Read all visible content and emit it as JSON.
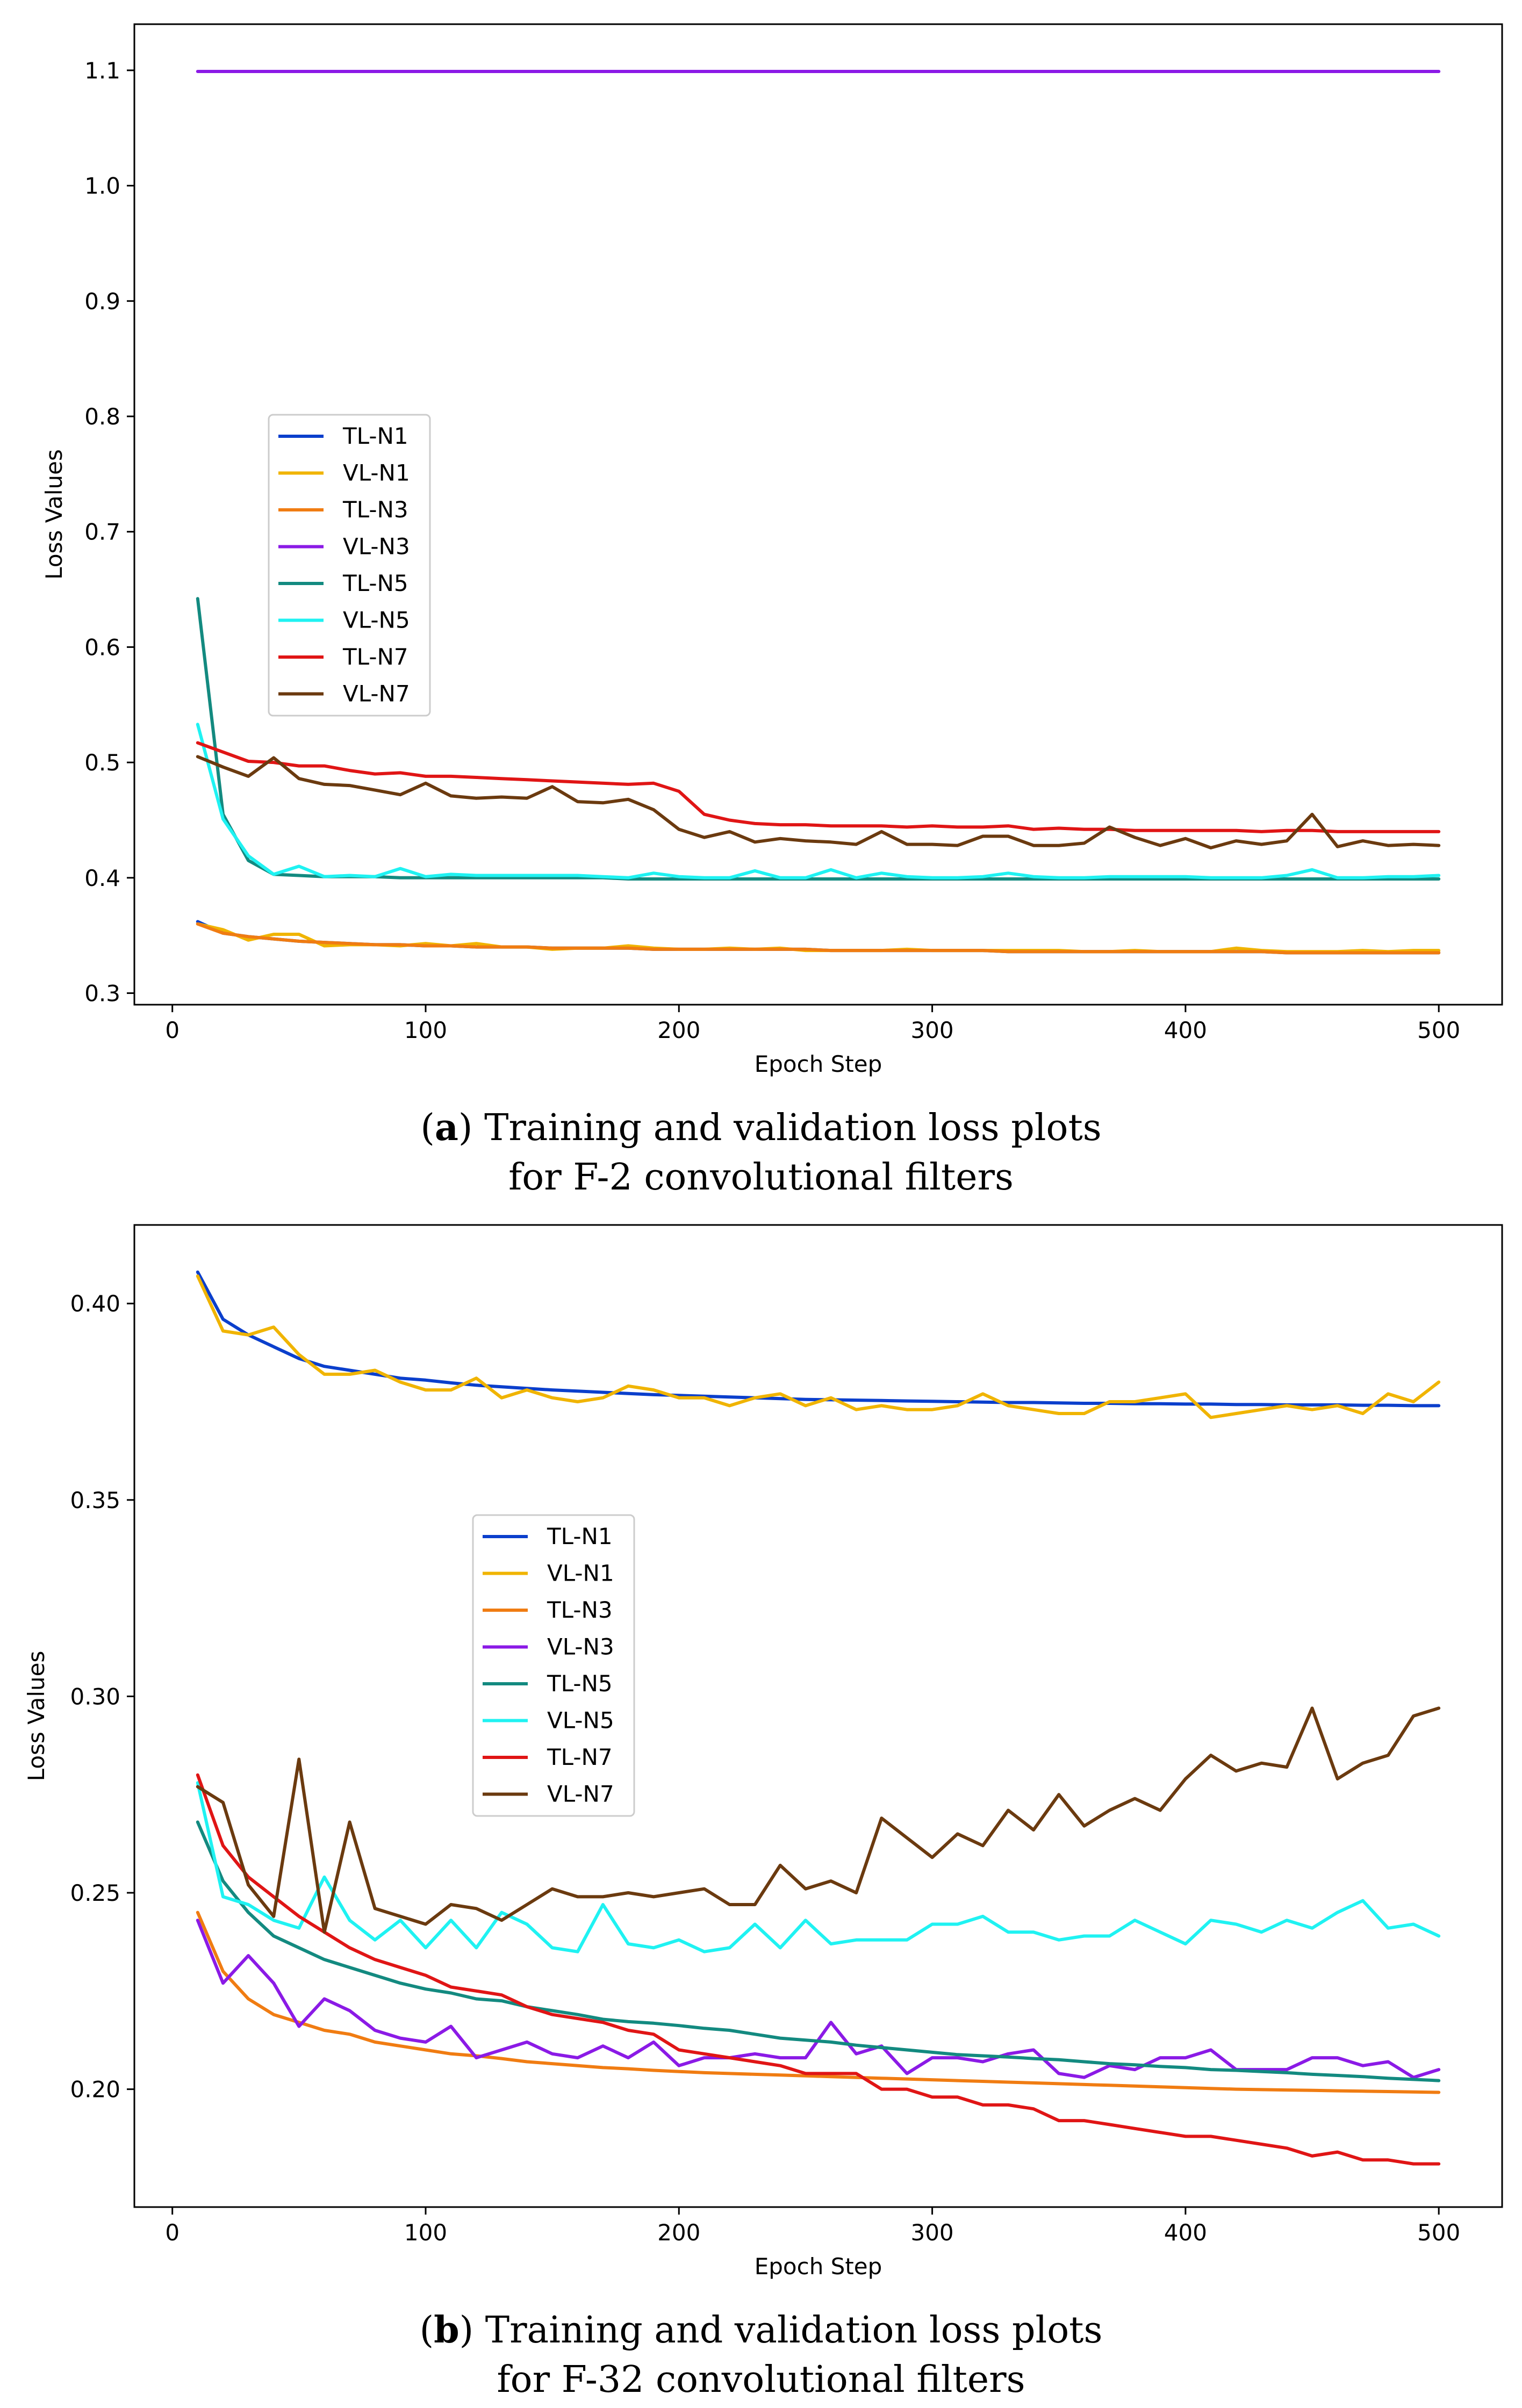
{
  "chart_data": [
    {
      "type": "line",
      "panel_id": "a",
      "caption_prefix": "(",
      "caption_letter": "a",
      "caption_suffix": ") Training and validation loss plots",
      "caption_line2": "for F-2 convolutional filters",
      "xlabel": "Epoch Step",
      "ylabel": "Loss Values",
      "xlim": [
        -15,
        525
      ],
      "ylim": [
        0.29,
        1.14
      ],
      "xticks": [
        0,
        100,
        200,
        300,
        400,
        500
      ],
      "yticks": [
        0.3,
        0.4,
        0.5,
        0.6,
        0.7,
        0.8,
        0.9,
        1.0,
        1.1
      ],
      "ytick_labels": [
        "0.3",
        "0.4",
        "0.5",
        "0.6",
        "0.7",
        "0.8",
        "0.9",
        "1.0",
        "1.1"
      ],
      "legend_position": "center-left",
      "x": [
        10,
        20,
        30,
        40,
        50,
        60,
        70,
        80,
        90,
        100,
        110,
        120,
        130,
        140,
        150,
        160,
        170,
        180,
        190,
        200,
        210,
        220,
        230,
        240,
        250,
        260,
        270,
        280,
        290,
        300,
        310,
        320,
        330,
        340,
        350,
        360,
        370,
        380,
        390,
        400,
        410,
        420,
        430,
        440,
        450,
        460,
        470,
        480,
        490,
        500
      ],
      "series": [
        {
          "name": "TL-N1",
          "color": "#0b3fcc",
          "values": [
            0.362,
            0.352,
            0.349,
            0.347,
            0.345,
            0.344,
            0.343,
            0.342,
            0.342,
            0.341,
            0.341,
            0.34,
            0.34,
            0.34,
            0.339,
            0.339,
            0.339,
            0.339,
            0.338,
            0.338,
            0.338,
            0.338,
            0.338,
            0.338,
            0.338,
            0.337,
            0.337,
            0.337,
            0.337,
            0.337,
            0.337,
            0.337,
            0.336,
            0.336,
            0.336,
            0.336,
            0.336,
            0.336,
            0.336,
            0.336,
            0.336,
            0.336,
            0.336,
            0.335,
            0.335,
            0.335,
            0.335,
            0.335,
            0.335,
            0.335
          ]
        },
        {
          "name": "VL-N1",
          "color": "#f0b400",
          "values": [
            0.36,
            0.355,
            0.346,
            0.351,
            0.351,
            0.341,
            0.342,
            0.342,
            0.341,
            0.343,
            0.341,
            0.343,
            0.34,
            0.34,
            0.338,
            0.339,
            0.339,
            0.341,
            0.339,
            0.338,
            0.338,
            0.339,
            0.338,
            0.339,
            0.337,
            0.337,
            0.337,
            0.337,
            0.338,
            0.337,
            0.337,
            0.337,
            0.337,
            0.337,
            0.337,
            0.336,
            0.336,
            0.337,
            0.336,
            0.336,
            0.336,
            0.339,
            0.337,
            0.336,
            0.336,
            0.336,
            0.337,
            0.336,
            0.337,
            0.337
          ]
        },
        {
          "name": "TL-N3",
          "color": "#f07c12",
          "values": [
            0.36,
            0.352,
            0.349,
            0.347,
            0.345,
            0.344,
            0.343,
            0.342,
            0.342,
            0.341,
            0.341,
            0.34,
            0.34,
            0.34,
            0.339,
            0.339,
            0.339,
            0.339,
            0.338,
            0.338,
            0.338,
            0.338,
            0.338,
            0.338,
            0.338,
            0.337,
            0.337,
            0.337,
            0.337,
            0.337,
            0.337,
            0.337,
            0.336,
            0.336,
            0.336,
            0.336,
            0.336,
            0.336,
            0.336,
            0.336,
            0.336,
            0.336,
            0.336,
            0.335,
            0.335,
            0.335,
            0.335,
            0.335,
            0.335,
            0.335
          ]
        },
        {
          "name": "VL-N3",
          "color": "#8b1ae6",
          "values": [
            1.099,
            1.099,
            1.099,
            1.099,
            1.099,
            1.099,
            1.099,
            1.099,
            1.099,
            1.099,
            1.099,
            1.099,
            1.099,
            1.099,
            1.099,
            1.099,
            1.099,
            1.099,
            1.099,
            1.099,
            1.099,
            1.099,
            1.099,
            1.099,
            1.099,
            1.099,
            1.099,
            1.099,
            1.099,
            1.099,
            1.099,
            1.099,
            1.099,
            1.099,
            1.099,
            1.099,
            1.099,
            1.099,
            1.099,
            1.099,
            1.099,
            1.099,
            1.099,
            1.099,
            1.099,
            1.099,
            1.099,
            1.099,
            1.099,
            1.099
          ]
        },
        {
          "name": "TL-N5",
          "color": "#138a80",
          "values": [
            0.642,
            0.455,
            0.415,
            0.403,
            0.402,
            0.401,
            0.401,
            0.401,
            0.4,
            0.4,
            0.4,
            0.4,
            0.4,
            0.4,
            0.4,
            0.4,
            0.4,
            0.399,
            0.399,
            0.399,
            0.399,
            0.399,
            0.399,
            0.399,
            0.399,
            0.399,
            0.399,
            0.399,
            0.399,
            0.399,
            0.399,
            0.399,
            0.399,
            0.399,
            0.399,
            0.399,
            0.399,
            0.399,
            0.399,
            0.399,
            0.399,
            0.399,
            0.399,
            0.399,
            0.399,
            0.399,
            0.399,
            0.399,
            0.399,
            0.399
          ]
        },
        {
          "name": "VL-N5",
          "color": "#1ff2f2",
          "values": [
            0.533,
            0.451,
            0.419,
            0.403,
            0.41,
            0.401,
            0.402,
            0.401,
            0.408,
            0.401,
            0.403,
            0.402,
            0.402,
            0.402,
            0.402,
            0.402,
            0.401,
            0.4,
            0.404,
            0.401,
            0.4,
            0.4,
            0.406,
            0.4,
            0.4,
            0.407,
            0.4,
            0.404,
            0.401,
            0.4,
            0.4,
            0.401,
            0.404,
            0.401,
            0.4,
            0.4,
            0.401,
            0.401,
            0.401,
            0.401,
            0.4,
            0.4,
            0.4,
            0.402,
            0.407,
            0.4,
            0.4,
            0.401,
            0.401,
            0.402
          ]
        },
        {
          "name": "TL-N7",
          "color": "#e01515",
          "values": [
            0.517,
            0.509,
            0.501,
            0.5,
            0.497,
            0.497,
            0.493,
            0.49,
            0.491,
            0.488,
            0.488,
            0.487,
            0.486,
            0.485,
            0.484,
            0.483,
            0.482,
            0.481,
            0.482,
            0.475,
            0.455,
            0.45,
            0.447,
            0.446,
            0.446,
            0.445,
            0.445,
            0.445,
            0.444,
            0.445,
            0.444,
            0.444,
            0.445,
            0.442,
            0.443,
            0.442,
            0.442,
            0.441,
            0.441,
            0.441,
            0.441,
            0.441,
            0.44,
            0.441,
            0.441,
            0.44,
            0.44,
            0.44,
            0.44,
            0.44
          ]
        },
        {
          "name": "VL-N7",
          "color": "#6b3a0f",
          "values": [
            0.505,
            0.496,
            0.488,
            0.504,
            0.486,
            0.481,
            0.48,
            0.476,
            0.472,
            0.482,
            0.471,
            0.469,
            0.47,
            0.469,
            0.479,
            0.466,
            0.465,
            0.468,
            0.459,
            0.442,
            0.435,
            0.44,
            0.431,
            0.434,
            0.432,
            0.431,
            0.429,
            0.44,
            0.429,
            0.429,
            0.428,
            0.436,
            0.436,
            0.428,
            0.428,
            0.43,
            0.444,
            0.435,
            0.428,
            0.434,
            0.426,
            0.432,
            0.429,
            0.432,
            0.455,
            0.427,
            0.432,
            0.428,
            0.429,
            0.428
          ]
        }
      ]
    },
    {
      "type": "line",
      "panel_id": "b",
      "caption_prefix": "(",
      "caption_letter": "b",
      "caption_suffix": ") Training and validation loss plots",
      "caption_line2": "for F-32 convolutional filters",
      "xlabel": "Epoch Step",
      "ylabel": "Loss Values",
      "xlim": [
        -15,
        525
      ],
      "ylim": [
        0.17,
        0.42
      ],
      "xticks": [
        0,
        100,
        200,
        300,
        400,
        500
      ],
      "yticks": [
        0.2,
        0.25,
        0.3,
        0.35,
        0.4
      ],
      "ytick_labels": [
        "0.20",
        "0.25",
        "0.30",
        "0.35",
        "0.40"
      ],
      "legend_position": "center-left",
      "x": [
        10,
        20,
        30,
        40,
        50,
        60,
        70,
        80,
        90,
        100,
        110,
        120,
        130,
        140,
        150,
        160,
        170,
        180,
        190,
        200,
        210,
        220,
        230,
        240,
        250,
        260,
        270,
        280,
        290,
        300,
        310,
        320,
        330,
        340,
        350,
        360,
        370,
        380,
        390,
        400,
        410,
        420,
        430,
        440,
        450,
        460,
        470,
        480,
        490,
        500
      ],
      "series": [
        {
          "name": "TL-N1",
          "color": "#0b3fcc",
          "values": [
            0.408,
            0.396,
            0.392,
            0.389,
            0.386,
            0.384,
            0.383,
            0.382,
            0.381,
            0.3805,
            0.3798,
            0.3792,
            0.3788,
            0.3784,
            0.378,
            0.3777,
            0.3774,
            0.3771,
            0.3768,
            0.3766,
            0.3764,
            0.3762,
            0.376,
            0.3758,
            0.3756,
            0.3755,
            0.3754,
            0.3753,
            0.3752,
            0.3751,
            0.375,
            0.3749,
            0.3748,
            0.3748,
            0.3747,
            0.3746,
            0.3746,
            0.3745,
            0.3745,
            0.3744,
            0.3744,
            0.3743,
            0.3743,
            0.3742,
            0.3742,
            0.3742,
            0.3741,
            0.3741,
            0.374,
            0.374
          ]
        },
        {
          "name": "VL-N1",
          "color": "#f0b400",
          "values": [
            0.407,
            0.393,
            0.392,
            0.394,
            0.387,
            0.382,
            0.382,
            0.383,
            0.38,
            0.378,
            0.378,
            0.381,
            0.376,
            0.378,
            0.376,
            0.375,
            0.376,
            0.379,
            0.378,
            0.376,
            0.376,
            0.374,
            0.376,
            0.377,
            0.374,
            0.376,
            0.373,
            0.374,
            0.373,
            0.373,
            0.374,
            0.377,
            0.374,
            0.373,
            0.372,
            0.372,
            0.375,
            0.375,
            0.376,
            0.377,
            0.371,
            0.372,
            0.373,
            0.374,
            0.373,
            0.374,
            0.372,
            0.377,
            0.375,
            0.38
          ]
        },
        {
          "name": "TL-N3",
          "color": "#f07c12",
          "values": [
            0.245,
            0.23,
            0.223,
            0.219,
            0.217,
            0.215,
            0.214,
            0.212,
            0.211,
            0.21,
            0.209,
            0.2085,
            0.2078,
            0.207,
            0.2065,
            0.206,
            0.2055,
            0.2052,
            0.2048,
            0.2045,
            0.2042,
            0.204,
            0.2038,
            0.2036,
            0.2034,
            0.2032,
            0.203,
            0.2028,
            0.2026,
            0.2024,
            0.2022,
            0.202,
            0.2018,
            0.2016,
            0.2014,
            0.2012,
            0.201,
            0.2008,
            0.2006,
            0.2004,
            0.2002,
            0.2,
            0.1999,
            0.1998,
            0.1997,
            0.1996,
            0.1995,
            0.1994,
            0.1993,
            0.1992
          ]
        },
        {
          "name": "VL-N3",
          "color": "#8b1ae6",
          "values": [
            0.243,
            0.227,
            0.234,
            0.227,
            0.216,
            0.223,
            0.22,
            0.215,
            0.213,
            0.212,
            0.216,
            0.208,
            0.21,
            0.212,
            0.209,
            0.208,
            0.211,
            0.208,
            0.212,
            0.206,
            0.208,
            0.208,
            0.209,
            0.208,
            0.208,
            0.217,
            0.209,
            0.211,
            0.204,
            0.208,
            0.208,
            0.207,
            0.209,
            0.21,
            0.204,
            0.203,
            0.206,
            0.205,
            0.208,
            0.208,
            0.21,
            0.205,
            0.205,
            0.205,
            0.208,
            0.208,
            0.206,
            0.207,
            0.203,
            0.205
          ]
        },
        {
          "name": "TL-N5",
          "color": "#138a80",
          "values": [
            0.268,
            0.253,
            0.245,
            0.239,
            0.236,
            0.233,
            0.231,
            0.229,
            0.227,
            0.2255,
            0.2245,
            0.223,
            0.2225,
            0.221,
            0.22,
            0.219,
            0.2178,
            0.2172,
            0.2168,
            0.2162,
            0.2155,
            0.215,
            0.214,
            0.213,
            0.2125,
            0.212,
            0.2112,
            0.2106,
            0.21,
            0.2094,
            0.2088,
            0.2085,
            0.2082,
            0.2078,
            0.2075,
            0.207,
            0.2065,
            0.2062,
            0.2058,
            0.2055,
            0.205,
            0.2048,
            0.2045,
            0.2042,
            0.2038,
            0.2035,
            0.2032,
            0.2028,
            0.2025,
            0.2022
          ]
        },
        {
          "name": "VL-N5",
          "color": "#1ff2f2",
          "values": [
            0.278,
            0.249,
            0.247,
            0.243,
            0.241,
            0.254,
            0.243,
            0.238,
            0.243,
            0.236,
            0.243,
            0.236,
            0.245,
            0.242,
            0.236,
            0.235,
            0.247,
            0.237,
            0.236,
            0.238,
            0.235,
            0.236,
            0.242,
            0.236,
            0.243,
            0.237,
            0.238,
            0.238,
            0.238,
            0.242,
            0.242,
            0.244,
            0.24,
            0.24,
            0.238,
            0.239,
            0.239,
            0.243,
            0.24,
            0.237,
            0.243,
            0.242,
            0.24,
            0.243,
            0.241,
            0.245,
            0.248,
            0.241,
            0.242,
            0.239
          ]
        },
        {
          "name": "TL-N7",
          "color": "#e01515",
          "values": [
            0.28,
            0.262,
            0.254,
            0.249,
            0.244,
            0.24,
            0.236,
            0.233,
            0.231,
            0.229,
            0.226,
            0.225,
            0.224,
            0.221,
            0.219,
            0.218,
            0.217,
            0.215,
            0.214,
            0.21,
            0.209,
            0.208,
            0.207,
            0.206,
            0.204,
            0.204,
            0.204,
            0.2,
            0.2,
            0.198,
            0.198,
            0.196,
            0.196,
            0.195,
            0.192,
            0.192,
            0.191,
            0.19,
            0.189,
            0.188,
            0.188,
            0.187,
            0.186,
            0.185,
            0.183,
            0.184,
            0.182,
            0.182,
            0.181,
            0.181
          ]
        },
        {
          "name": "VL-N7",
          "color": "#6b3a0f",
          "values": [
            0.277,
            0.273,
            0.252,
            0.244,
            0.284,
            0.24,
            0.268,
            0.246,
            0.244,
            0.242,
            0.247,
            0.246,
            0.243,
            0.247,
            0.251,
            0.249,
            0.249,
            0.25,
            0.249,
            0.25,
            0.251,
            0.247,
            0.247,
            0.257,
            0.251,
            0.253,
            0.25,
            0.269,
            0.264,
            0.259,
            0.265,
            0.262,
            0.271,
            0.266,
            0.275,
            0.267,
            0.271,
            0.274,
            0.271,
            0.279,
            0.285,
            0.281,
            0.283,
            0.282,
            0.297,
            0.279,
            0.283,
            0.285,
            0.295,
            0.297
          ]
        }
      ]
    }
  ]
}
